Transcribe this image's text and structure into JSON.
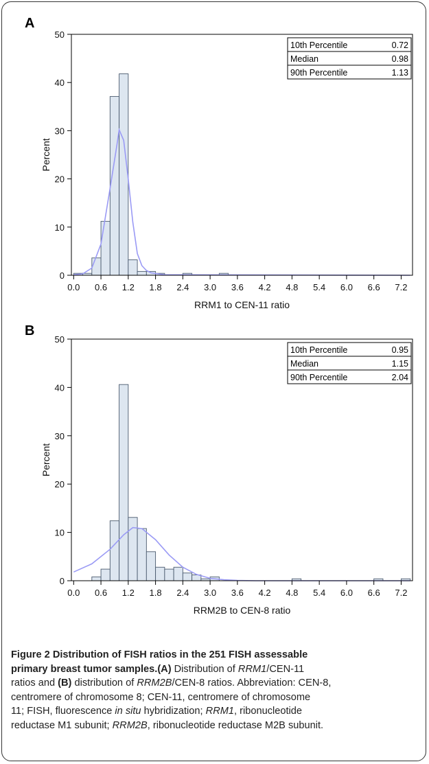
{
  "chart_data": [
    {
      "panel": "A",
      "type": "bar",
      "xlabel": "RRM1 to CEN-11 ratio",
      "ylabel": "Percent",
      "xlim": [
        -0.05,
        7.45
      ],
      "ylim": [
        0,
        50
      ],
      "xticks": [
        "0.0",
        "0.6",
        "1.2",
        "1.8",
        "2.4",
        "3.0",
        "3.6",
        "4.2",
        "4.8",
        "5.4",
        "6.0",
        "6.6",
        "7.2"
      ],
      "yticks": [
        "0",
        "10",
        "20",
        "30",
        "40",
        "50"
      ],
      "bin_width": 0.2,
      "bins": [
        {
          "x": 0.1,
          "y": 0.4
        },
        {
          "x": 0.3,
          "y": 0.4
        },
        {
          "x": 0.5,
          "y": 3.6
        },
        {
          "x": 0.7,
          "y": 11.2
        },
        {
          "x": 0.9,
          "y": 37.1
        },
        {
          "x": 1.1,
          "y": 41.8
        },
        {
          "x": 1.3,
          "y": 3.2
        },
        {
          "x": 1.5,
          "y": 0.8
        },
        {
          "x": 1.7,
          "y": 0.8
        },
        {
          "x": 1.9,
          "y": 0.4
        },
        {
          "x": 2.5,
          "y": 0.4
        },
        {
          "x": 3.3,
          "y": 0.4
        }
      ],
      "density_curve": [
        [
          0.0,
          0.1
        ],
        [
          0.2,
          0.3
        ],
        [
          0.4,
          1.5
        ],
        [
          0.6,
          6.5
        ],
        [
          0.8,
          18
        ],
        [
          0.95,
          27
        ],
        [
          1.0,
          30.2
        ],
        [
          1.1,
          28
        ],
        [
          1.2,
          20
        ],
        [
          1.3,
          11
        ],
        [
          1.4,
          4.5
        ],
        [
          1.5,
          2
        ],
        [
          1.6,
          1
        ],
        [
          1.7,
          0.5
        ],
        [
          2.0,
          0.1
        ],
        [
          7.4,
          0
        ]
      ],
      "stats": [
        {
          "label": "10th Percentile",
          "value": "0.72"
        },
        {
          "label": "Median",
          "value": "0.98"
        },
        {
          "label": "90th Percentile",
          "value": "1.13"
        }
      ],
      "legend_position": "top-right",
      "colors": {
        "bar_fill": "#dde6f0",
        "bar_edge": "#4a5a6e",
        "curve": "#9a9af5"
      }
    },
    {
      "panel": "B",
      "type": "bar",
      "xlabel": "RRM2B to CEN-8 ratio",
      "ylabel": "Percent",
      "xlim": [
        -0.05,
        7.45
      ],
      "ylim": [
        0,
        50
      ],
      "xticks": [
        "0.0",
        "0.6",
        "1.2",
        "1.8",
        "2.4",
        "3.0",
        "3.6",
        "4.2",
        "4.8",
        "5.4",
        "6.0",
        "6.6",
        "7.2"
      ],
      "yticks": [
        "0",
        "10",
        "20",
        "30",
        "40",
        "50"
      ],
      "bin_width": 0.2,
      "bins": [
        {
          "x": 0.5,
          "y": 0.8
        },
        {
          "x": 0.7,
          "y": 2.4
        },
        {
          "x": 0.9,
          "y": 12.4
        },
        {
          "x": 1.1,
          "y": 40.6
        },
        {
          "x": 1.3,
          "y": 13.1
        },
        {
          "x": 1.5,
          "y": 10.8
        },
        {
          "x": 1.7,
          "y": 6.0
        },
        {
          "x": 1.9,
          "y": 2.8
        },
        {
          "x": 2.1,
          "y": 2.4
        },
        {
          "x": 2.3,
          "y": 2.8
        },
        {
          "x": 2.5,
          "y": 1.6
        },
        {
          "x": 2.7,
          "y": 1.2
        },
        {
          "x": 2.9,
          "y": 0.4
        },
        {
          "x": 3.1,
          "y": 0.8
        },
        {
          "x": 4.9,
          "y": 0.4
        },
        {
          "x": 6.7,
          "y": 0.4
        },
        {
          "x": 7.3,
          "y": 0.4
        }
      ],
      "density_curve": [
        [
          0.0,
          1.8
        ],
        [
          0.4,
          3.5
        ],
        [
          0.8,
          6.5
        ],
        [
          1.1,
          9.5
        ],
        [
          1.3,
          11.0
        ],
        [
          1.5,
          10.8
        ],
        [
          1.8,
          8.5
        ],
        [
          2.1,
          5.3
        ],
        [
          2.4,
          2.8
        ],
        [
          2.7,
          1.3
        ],
        [
          3.0,
          0.5
        ],
        [
          3.3,
          0.2
        ],
        [
          3.6,
          0.05
        ],
        [
          4.0,
          0
        ],
        [
          7.4,
          0
        ]
      ],
      "stats": [
        {
          "label": "10th Percentile",
          "value": "0.95"
        },
        {
          "label": "Median",
          "value": "1.15"
        },
        {
          "label": "90th Percentile",
          "value": "2.04"
        }
      ],
      "legend_position": "top-right",
      "colors": {
        "bar_fill": "#dde6f0",
        "bar_edge": "#4a5a6e",
        "curve": "#9a9af5"
      }
    }
  ],
  "caption": {
    "title": "Figure 2 Distribution of FISH ratios in the 251 FISH assessable primary breast tumor samples.",
    "line1": "primary breast tumor samples.",
    "seg_a_label": "(A)",
    "seg_a_text": " Distribution of ",
    "rrm1": "RRM1",
    "seg_cen11": "/CEN-11",
    "seg_b_pre": "ratios and ",
    "seg_b_label": "(B)",
    "seg_b_text": " distribution of ",
    "rrm2b": "RRM2B",
    "seg_cen8": "/CEN-8 ratios. Abbreviation: CEN-8,",
    "line4": "centromere of chromosome 8; CEN-11, centromere of chromosome",
    "line5_pre": "11; FISH, fluorescence ",
    "in_situ": "in situ",
    "line5_post": " hybridization; ",
    "rrm1b": "RRM1",
    "line5_end": ", ribonucleotide",
    "line6_pre": "reductase M1 subunit; ",
    "rrm2b_b": "RRM2B",
    "line6_post": ", ribonucleotide reductase M2B subunit."
  }
}
